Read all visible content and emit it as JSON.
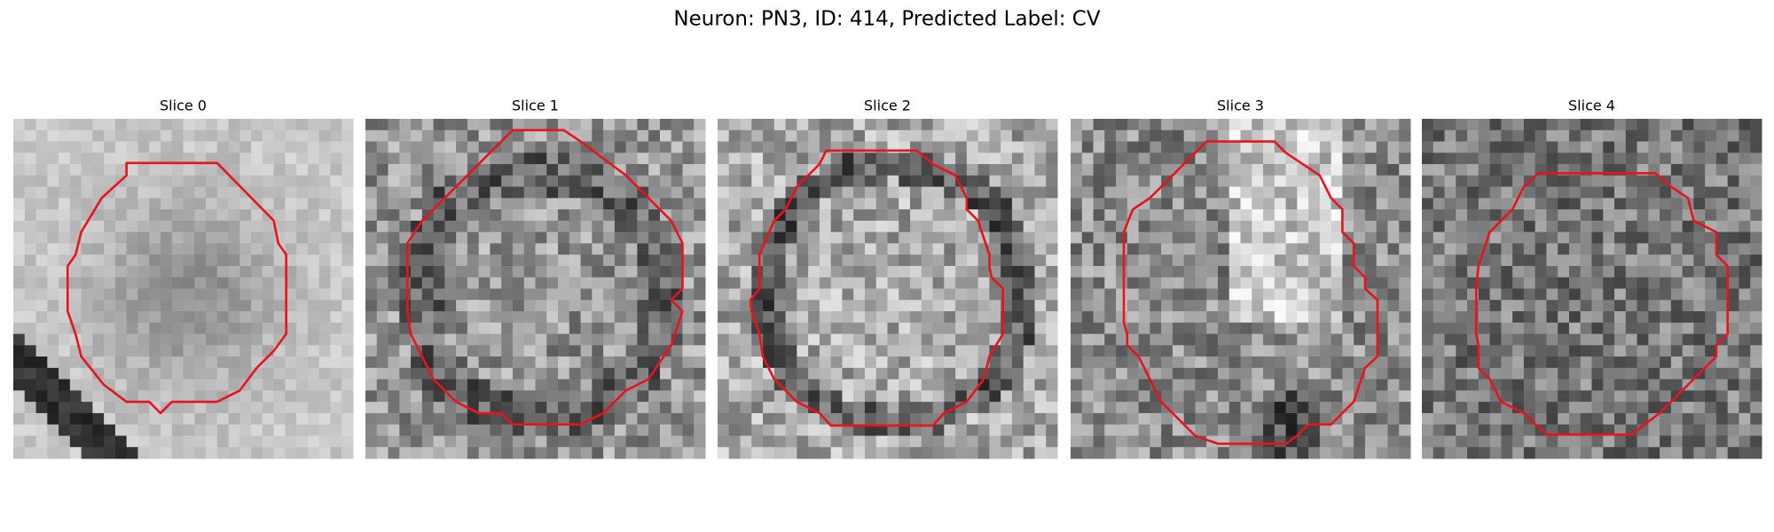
{
  "title": "Neuron: PN3, ID: 414, Predicted Label: CV",
  "panels": [
    "Slice 0",
    "Slice 1",
    "Slice 2",
    "Slice 3",
    "Slice 4"
  ]
}
